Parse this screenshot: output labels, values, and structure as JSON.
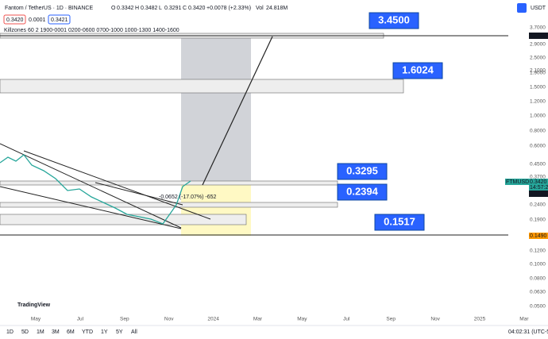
{
  "header": {
    "symbol": "Fantom / TetherUS · 1D · BINANCE",
    "open_label": "O",
    "open": "0.3342",
    "high_label": "H",
    "high": "0.3482",
    "low_label": "L",
    "low": "0.3291",
    "close_label": "C",
    "close": "0.3420",
    "change": "+0.0078 (+2.33%)",
    "volume_label": "Vol",
    "volume": "24.818M",
    "sell": "0.3420",
    "spread": "0.0001",
    "buy": "0.3421",
    "indicator": "Killzones 60 2 1900-0001 0200-0600 0700-1000 1000-1300 1400-1600",
    "currency": "USDT"
  },
  "price_axis": [
    "3.7000",
    "2.9000",
    "2.5000",
    "2.1000",
    "1.9000",
    "1.5000",
    "1.2000",
    "1.0000",
    "0.8000",
    "0.6000",
    "0.4500",
    "0.3700",
    "0.2400",
    "0.1900",
    "0.1200",
    "0.1000",
    "0.0800",
    "0.0630",
    "0.0500"
  ],
  "price_tags": {
    "level_high": "3.3560",
    "symbol": "FTMUSDT",
    "last": "0.3420",
    "countdown": "14:57:2",
    "level_mid": "0.3167",
    "level_low": "0.1490"
  },
  "time_axis": [
    "May",
    "Jul",
    "Sep",
    "Nov",
    "2024",
    "Mar",
    "May",
    "Jul",
    "Sep",
    "Nov",
    "2025",
    "Mar"
  ],
  "annotations": [
    "3.4500",
    "1.6024",
    "0.3295",
    "0.2394",
    "0.1517"
  ],
  "measure": "-0.0652 (-17.07%) -652",
  "logo": "TradingView",
  "toolbar": {
    "ranges": [
      "1D",
      "5D",
      "1M",
      "3M",
      "6M",
      "YTD",
      "1Y",
      "5Y",
      "All"
    ],
    "clock": "04:02:31 (UTC-5"
  }
}
